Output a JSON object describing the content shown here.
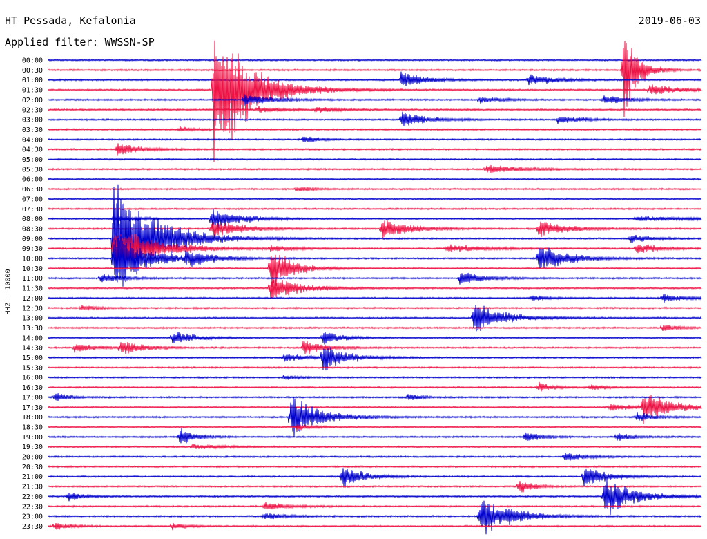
{
  "header": {
    "station": "HT Pessada, Kefalonia",
    "filter": "Applied filter: WWSSN-SP",
    "date": "2019-06-03"
  },
  "chart_data": {
    "type": "line",
    "title": "HT Pessada, Kefalonia",
    "subtitle": "Applied filter: WWSSN-SP",
    "date": "2019-06-03",
    "ylabel": "HHZ - 10000",
    "row_interval_minutes": 30,
    "trace_colors": [
      "#0000cc",
      "#ee1144"
    ],
    "rows": [
      "00:00",
      "00:30",
      "01:00",
      "01:30",
      "02:00",
      "02:30",
      "03:00",
      "03:30",
      "04:00",
      "04:30",
      "05:00",
      "05:30",
      "06:00",
      "06:30",
      "07:00",
      "07:30",
      "08:00",
      "08:30",
      "09:00",
      "09:30",
      "10:00",
      "10:30",
      "11:00",
      "11:30",
      "12:00",
      "12:30",
      "13:00",
      "13:30",
      "14:00",
      "14:30",
      "15:00",
      "15:30",
      "16:00",
      "16:30",
      "17:00",
      "17:30",
      "18:00",
      "18:30",
      "19:00",
      "19:30",
      "20:00",
      "20:30",
      "21:00",
      "21:30",
      "22:00",
      "22:30",
      "23:00",
      "23:30"
    ],
    "events": [
      {
        "row": 1,
        "t": 0.88,
        "amp": 80,
        "len": 0.02
      },
      {
        "row": 2,
        "t": 0.54,
        "amp": 16,
        "len": 0.03
      },
      {
        "row": 2,
        "t": 0.735,
        "amp": 12,
        "len": 0.03
      },
      {
        "row": 3,
        "t": 0.253,
        "amp": 130,
        "len": 0.05
      },
      {
        "row": 3,
        "t": 0.92,
        "amp": 9,
        "len": 0.04
      },
      {
        "row": 4,
        "t": 0.3,
        "amp": 10,
        "len": 0.04
      },
      {
        "row": 4,
        "t": 0.85,
        "amp": 9,
        "len": 0.03
      },
      {
        "row": 4,
        "t": 0.66,
        "amp": 5,
        "len": 0.03
      },
      {
        "row": 5,
        "t": 0.32,
        "amp": 5,
        "len": 0.03
      },
      {
        "row": 5,
        "t": 0.41,
        "amp": 5,
        "len": 0.03
      },
      {
        "row": 6,
        "t": 0.54,
        "amp": 14,
        "len": 0.035
      },
      {
        "row": 6,
        "t": 0.78,
        "amp": 8,
        "len": 0.03
      },
      {
        "row": 7,
        "t": 0.2,
        "amp": 5,
        "len": 0.02
      },
      {
        "row": 8,
        "t": 0.39,
        "amp": 7,
        "len": 0.02
      },
      {
        "row": 9,
        "t": 0.105,
        "amp": 12,
        "len": 0.03
      },
      {
        "row": 11,
        "t": 0.67,
        "amp": 7,
        "len": 0.05
      },
      {
        "row": 13,
        "t": 0.38,
        "amp": 5,
        "len": 0.02
      },
      {
        "row": 16,
        "t": 0.1,
        "amp": 7,
        "len": 0.03
      },
      {
        "row": 16,
        "t": 0.25,
        "amp": 18,
        "len": 0.04
      },
      {
        "row": 16,
        "t": 0.9,
        "amp": 4,
        "len": 0.1
      },
      {
        "row": 17,
        "t": 0.25,
        "amp": 18,
        "len": 0.04
      },
      {
        "row": 17,
        "t": 0.51,
        "amp": 18,
        "len": 0.04
      },
      {
        "row": 17,
        "t": 0.75,
        "amp": 15,
        "len": 0.04
      },
      {
        "row": 18,
        "t": 0.1,
        "amp": 100,
        "len": 0.06
      },
      {
        "row": 18,
        "t": 0.89,
        "amp": 8,
        "len": 0.03
      },
      {
        "row": 19,
        "t": 0.1,
        "amp": 40,
        "len": 0.06
      },
      {
        "row": 19,
        "t": 0.34,
        "amp": 6,
        "len": 0.03
      },
      {
        "row": 19,
        "t": 0.61,
        "amp": 6,
        "len": 0.06
      },
      {
        "row": 19,
        "t": 0.9,
        "amp": 10,
        "len": 0.03
      },
      {
        "row": 20,
        "t": 0.1,
        "amp": 60,
        "len": 0.04
      },
      {
        "row": 20,
        "t": 0.21,
        "amp": 12,
        "len": 0.04
      },
      {
        "row": 20,
        "t": 0.75,
        "amp": 25,
        "len": 0.04
      },
      {
        "row": 21,
        "t": 0.34,
        "amp": 40,
        "len": 0.03
      },
      {
        "row": 22,
        "t": 0.08,
        "amp": 8,
        "len": 0.03
      },
      {
        "row": 22,
        "t": 0.63,
        "amp": 12,
        "len": 0.03
      },
      {
        "row": 23,
        "t": 0.34,
        "amp": 22,
        "len": 0.04
      },
      {
        "row": 24,
        "t": 0.94,
        "amp": 8,
        "len": 0.03
      },
      {
        "row": 24,
        "t": 0.74,
        "amp": 5,
        "len": 0.02
      },
      {
        "row": 25,
        "t": 0.05,
        "amp": 5,
        "len": 0.02
      },
      {
        "row": 26,
        "t": 0.65,
        "amp": 28,
        "len": 0.04
      },
      {
        "row": 27,
        "t": 0.94,
        "amp": 7,
        "len": 0.02
      },
      {
        "row": 28,
        "t": 0.19,
        "amp": 12,
        "len": 0.03
      },
      {
        "row": 28,
        "t": 0.42,
        "amp": 14,
        "len": 0.025
      },
      {
        "row": 29,
        "t": 0.04,
        "amp": 8,
        "len": 0.03
      },
      {
        "row": 29,
        "t": 0.11,
        "amp": 14,
        "len": 0.03
      },
      {
        "row": 29,
        "t": 0.39,
        "amp": 14,
        "len": 0.03
      },
      {
        "row": 30,
        "t": 0.42,
        "amp": 22,
        "len": 0.035
      },
      {
        "row": 30,
        "t": 0.36,
        "amp": 8,
        "len": 0.03
      },
      {
        "row": 32,
        "t": 0.36,
        "amp": 4,
        "len": 0.02
      },
      {
        "row": 33,
        "t": 0.75,
        "amp": 9,
        "len": 0.02
      },
      {
        "row": 33,
        "t": 0.83,
        "amp": 6,
        "len": 0.02
      },
      {
        "row": 34,
        "t": 0.01,
        "amp": 8,
        "len": 0.02
      },
      {
        "row": 34,
        "t": 0.55,
        "amp": 6,
        "len": 0.02
      },
      {
        "row": 35,
        "t": 0.91,
        "amp": 30,
        "len": 0.04
      },
      {
        "row": 35,
        "t": 0.86,
        "amp": 7,
        "len": 0.03
      },
      {
        "row": 36,
        "t": 0.37,
        "amp": 40,
        "len": 0.04
      },
      {
        "row": 36,
        "t": 0.9,
        "amp": 10,
        "len": 0.02
      },
      {
        "row": 37,
        "t": 0.38,
        "amp": 6,
        "len": 0.02
      },
      {
        "row": 38,
        "t": 0.2,
        "amp": 20,
        "len": 0.02
      },
      {
        "row": 38,
        "t": 0.73,
        "amp": 10,
        "len": 0.02
      },
      {
        "row": 38,
        "t": 0.87,
        "amp": 8,
        "len": 0.02
      },
      {
        "row": 39,
        "t": 0.22,
        "amp": 5,
        "len": 0.04
      },
      {
        "row": 40,
        "t": 0.79,
        "amp": 7,
        "len": 0.03
      },
      {
        "row": 42,
        "t": 0.45,
        "amp": 20,
        "len": 0.03
      },
      {
        "row": 42,
        "t": 0.82,
        "amp": 20,
        "len": 0.03
      },
      {
        "row": 43,
        "t": 0.72,
        "amp": 12,
        "len": 0.02
      },
      {
        "row": 44,
        "t": 0.03,
        "amp": 8,
        "len": 0.02
      },
      {
        "row": 44,
        "t": 0.85,
        "amp": 35,
        "len": 0.04
      },
      {
        "row": 45,
        "t": 0.33,
        "amp": 8,
        "len": 0.03
      },
      {
        "row": 46,
        "t": 0.33,
        "amp": 6,
        "len": 0.03
      },
      {
        "row": 46,
        "t": 0.66,
        "amp": 35,
        "len": 0.04
      },
      {
        "row": 46,
        "t": 0.7,
        "amp": 6,
        "len": 0.03
      },
      {
        "row": 47,
        "t": 0.01,
        "amp": 8,
        "len": 0.02
      },
      {
        "row": 47,
        "t": 0.19,
        "amp": 5,
        "len": 0.02
      }
    ]
  }
}
